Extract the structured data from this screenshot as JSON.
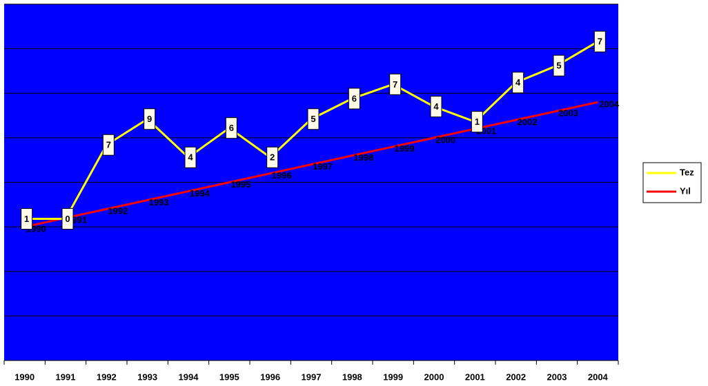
{
  "chart_data": {
    "type": "line",
    "categories": [
      "1990",
      "1991",
      "1992",
      "1993",
      "1994",
      "1995",
      "1996",
      "1997",
      "1998",
      "1999",
      "2000",
      "2001",
      "2002",
      "2003",
      "2004"
    ],
    "series": [
      {
        "name": "Tez",
        "color": "#ffff00",
        "values": [
          1990.9,
          1990.9,
          1999.2,
          2002.1,
          1997.8,
          2001.1,
          1997.8,
          2002.1,
          2004.4,
          2006.0,
          2003.5,
          2001.8,
          2006.2,
          2008.1,
          2010.8
        ],
        "value_labels": [
          "1",
          "0",
          "7",
          "9",
          "4",
          "6",
          "2",
          "5",
          "6",
          "7",
          "4",
          "1",
          "4",
          "5",
          "7"
        ]
      },
      {
        "name": "Yıl",
        "color": "#ff0000",
        "values": [
          1990,
          1991,
          1992,
          1993,
          1994,
          1995,
          1996,
          1997,
          1998,
          1999,
          2000,
          2001,
          2002,
          2003,
          2004
        ]
      }
    ],
    "ylim": [
      1975,
      2015
    ],
    "yticks": [
      1975,
      1980,
      1985,
      1990,
      1995,
      2000,
      2005,
      2010,
      2015
    ],
    "grid": true,
    "legend": "right",
    "plot_color": "#0000ff"
  }
}
